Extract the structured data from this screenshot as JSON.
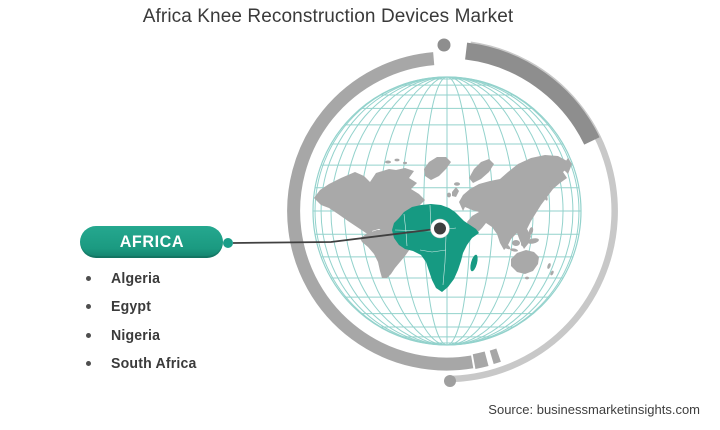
{
  "title": "Africa Knee Reconstruction Devices Market",
  "region": {
    "label": "AFRICA",
    "countries": [
      "Algeria",
      "Egypt",
      "Nigeria",
      "South Africa"
    ]
  },
  "source": "Source: businessmarketinsights.com",
  "map": {
    "highlighted_region": "Africa"
  },
  "colors": {
    "accent_teal": "#1b9e89",
    "africa_fill": "#169a82",
    "continent_gray": "#a9a9a9",
    "graticule_teal": "#93d2cc",
    "arc_gray": "#a7a7a7",
    "arc_dark_gray": "#8e8e8e",
    "arc_light_gray": "#c8c8c8",
    "marker_dark": "#3e3e3e",
    "connector_dark": "#404040",
    "text_dark": "#3a3a3a"
  }
}
